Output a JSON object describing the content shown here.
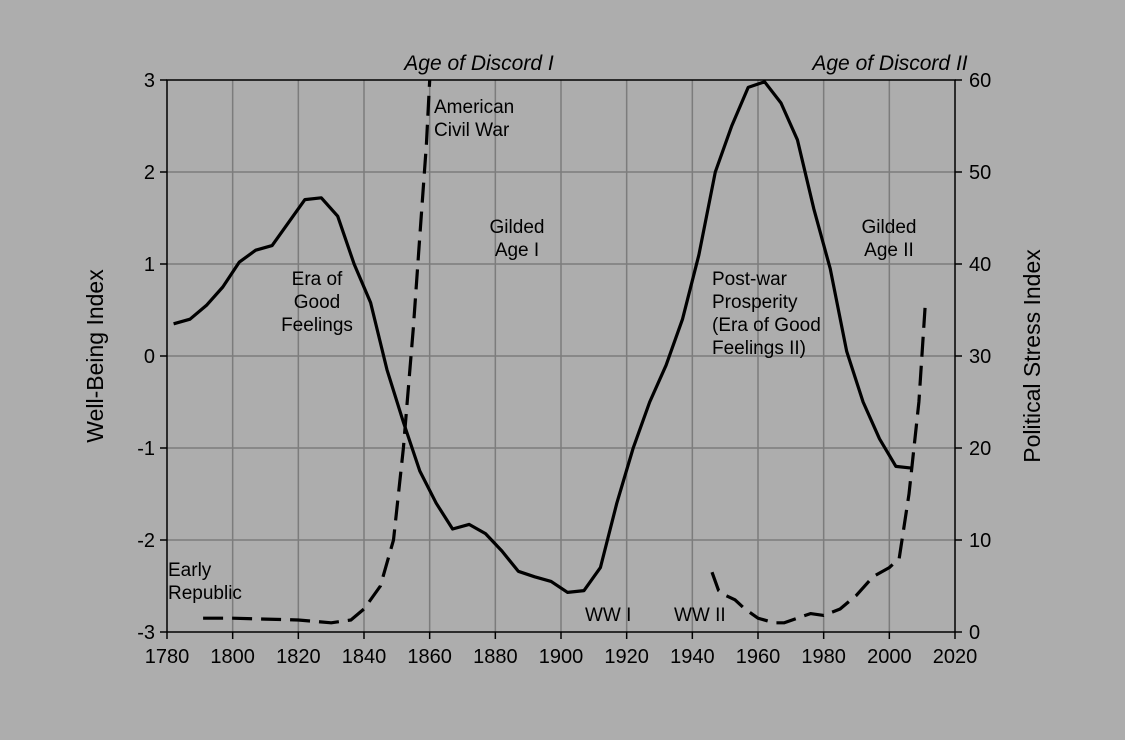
{
  "chart_data": {
    "type": "line",
    "title": "",
    "xlabel": "",
    "ylabel": "Well-Being Index",
    "y2label": "Political Stress Index",
    "xlim": [
      1780,
      2020
    ],
    "ylim": [
      -3,
      3
    ],
    "y2lim": [
      0,
      60
    ],
    "xticks": [
      "1780",
      "1800",
      "1820",
      "1840",
      "1860",
      "1880",
      "1900",
      "1920",
      "1940",
      "1960",
      "1980",
      "2000",
      "2020"
    ],
    "yticks": [
      "3",
      "2",
      "1",
      "0",
      "-1",
      "-2",
      "-3"
    ],
    "y2ticks": [
      "60",
      "50",
      "40",
      "30",
      "20",
      "10",
      "0"
    ],
    "grid": true,
    "legend": "none",
    "era_labels": [
      "Age of Discord I",
      "Age of Discord II"
    ],
    "annotations": [
      {
        "lines": [
          "American",
          "Civil War"
        ]
      },
      {
        "lines": [
          "Gilded",
          "Age I"
        ]
      },
      {
        "lines": [
          "Era of",
          "Good",
          "Feelings"
        ]
      },
      {
        "lines": [
          "Early",
          "Republic"
        ]
      },
      {
        "lines": [
          "WW I"
        ]
      },
      {
        "lines": [
          "WW II"
        ]
      },
      {
        "lines": [
          "Post-war",
          "Prosperity",
          "(Era of Good",
          "Feelings II)"
        ]
      },
      {
        "lines": [
          "Gilded",
          "Age II"
        ]
      }
    ],
    "series": [
      {
        "axis": "left",
        "style": "solid",
        "color": "#000000",
        "x": [
          1782,
          1787,
          1792,
          1797,
          1802,
          1807,
          1812,
          1817,
          1822,
          1827,
          1832,
          1837,
          1842,
          1847,
          1852,
          1857,
          1862,
          1867,
          1872,
          1877,
          1882,
          1887,
          1892,
          1897,
          1902,
          1907,
          1912,
          1917,
          1922,
          1927,
          1932,
          1937,
          1942,
          1947,
          1952,
          1957,
          1962,
          1967,
          1972,
          1977,
          1982,
          1987,
          1992,
          1997,
          2002,
          2007
        ],
        "values": [
          0.35,
          0.4,
          0.55,
          0.75,
          1.02,
          1.15,
          1.2,
          1.45,
          1.7,
          1.72,
          1.52,
          1.0,
          0.58,
          -0.15,
          -0.72,
          -1.25,
          -1.6,
          -1.88,
          -1.83,
          -1.93,
          -2.12,
          -2.34,
          -2.4,
          -2.45,
          -2.57,
          -2.55,
          -2.3,
          -1.6,
          -1.0,
          -0.5,
          -0.1,
          0.4,
          1.1,
          2.0,
          2.5,
          2.92,
          2.98,
          2.75,
          2.35,
          1.6,
          0.95,
          0.05,
          -0.5,
          -0.9,
          -1.2,
          -1.22
        ]
      },
      {
        "axis": "right",
        "style": "dashed",
        "color": "#000000",
        "x": [
          1791,
          1800,
          1810,
          1820,
          1830,
          1836,
          1840,
          1845,
          1849,
          1852,
          1855,
          1857,
          1859,
          1860
        ],
        "values": [
          1.5,
          1.5,
          1.4,
          1.3,
          1.0,
          1.3,
          2.5,
          5.0,
          10.0,
          20.0,
          33.0,
          43.0,
          53.0,
          60.0
        ]
      },
      {
        "axis": "right",
        "style": "dashed",
        "color": "#000000",
        "x": [
          1946,
          1948,
          1950,
          1953,
          1956,
          1960,
          1965,
          1968,
          1972,
          1976,
          1980,
          1985,
          1990,
          1995,
          2000,
          2003,
          2006,
          2009,
          2011
        ],
        "values": [
          6.5,
          4.5,
          4.0,
          3.5,
          2.5,
          1.5,
          1.0,
          1.0,
          1.5,
          2.0,
          1.8,
          2.5,
          4.0,
          6.0,
          7.0,
          8.0,
          15.0,
          25.0,
          36.0
        ]
      }
    ]
  }
}
